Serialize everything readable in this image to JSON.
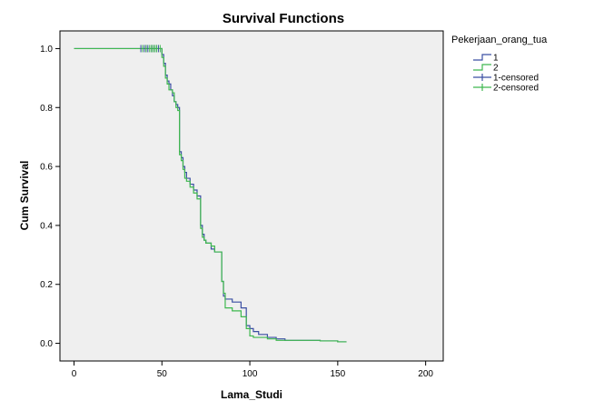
{
  "chart_data": {
    "type": "line",
    "title": "Survival Functions",
    "xlabel": "Lama_Studi",
    "ylabel": "Cum Survival",
    "xlim": [
      -8,
      210
    ],
    "ylim": [
      -0.06,
      1.06
    ],
    "xticks": [
      0,
      50,
      100,
      150,
      200
    ],
    "xtick_labels": [
      "0",
      "50",
      "100",
      "150",
      "200"
    ],
    "yticks": [
      0.0,
      0.2,
      0.4,
      0.6,
      0.8,
      1.0
    ],
    "ytick_labels": [
      "0.0",
      "0.2",
      "0.4",
      "0.6",
      "0.8",
      "1.0"
    ],
    "plot_background": "#efefef",
    "grid": false,
    "legend": {
      "title": "Pekerjaan_orang_tua",
      "placement": "right",
      "entries": [
        "1",
        "2",
        "1-censored",
        "2-censored"
      ]
    },
    "series": [
      {
        "name": "1",
        "color": "#3b4fa3",
        "style": "step",
        "x": [
          0,
          50,
          51,
          52,
          53,
          54,
          55,
          56,
          57,
          58,
          59,
          60,
          61,
          62,
          63,
          64,
          66,
          68,
          70,
          72,
          73,
          74,
          75,
          78,
          80,
          84,
          85,
          86,
          90,
          95,
          98,
          100,
          102,
          105,
          110,
          115,
          120,
          130,
          140,
          150,
          155
        ],
        "y": [
          1.0,
          0.98,
          0.95,
          0.91,
          0.89,
          0.88,
          0.86,
          0.84,
          0.82,
          0.81,
          0.8,
          0.65,
          0.63,
          0.6,
          0.58,
          0.56,
          0.54,
          0.52,
          0.5,
          0.4,
          0.37,
          0.35,
          0.34,
          0.32,
          0.31,
          0.21,
          0.16,
          0.15,
          0.14,
          0.12,
          0.06,
          0.05,
          0.04,
          0.03,
          0.02,
          0.015,
          0.01,
          0.01,
          0.008,
          0.005,
          0.005
        ]
      },
      {
        "name": "2",
        "color": "#3fb84f",
        "style": "step",
        "x": [
          0,
          50,
          51,
          52,
          53,
          54,
          55,
          56,
          57,
          58,
          59,
          60,
          61,
          62,
          63,
          64,
          66,
          68,
          70,
          72,
          73,
          74,
          75,
          78,
          80,
          84,
          85,
          86,
          90,
          95,
          98,
          100,
          102,
          105,
          110,
          115,
          120,
          130,
          140,
          150,
          155
        ],
        "y": [
          1.0,
          0.97,
          0.94,
          0.9,
          0.88,
          0.86,
          0.86,
          0.85,
          0.82,
          0.8,
          0.79,
          0.64,
          0.62,
          0.59,
          0.56,
          0.55,
          0.53,
          0.51,
          0.49,
          0.39,
          0.36,
          0.35,
          0.34,
          0.33,
          0.31,
          0.21,
          0.17,
          0.12,
          0.11,
          0.09,
          0.05,
          0.025,
          0.02,
          0.02,
          0.015,
          0.01,
          0.01,
          0.01,
          0.008,
          0.005,
          0.005
        ]
      }
    ],
    "censored": [
      {
        "name": "1-censored",
        "color": "#3b4fa3",
        "x": [
          38,
          40,
          41,
          42,
          44,
          45,
          46,
          47,
          48
        ],
        "y": [
          1.0,
          1.0,
          1.0,
          1.0,
          1.0,
          1.0,
          1.0,
          1.0,
          1.0
        ]
      },
      {
        "name": "2-censored",
        "color": "#3fb84f",
        "x": [
          39,
          41,
          43,
          44,
          45,
          46,
          47,
          49
        ],
        "y": [
          1.0,
          1.0,
          1.0,
          1.0,
          1.0,
          1.0,
          1.0,
          1.0
        ]
      }
    ]
  }
}
